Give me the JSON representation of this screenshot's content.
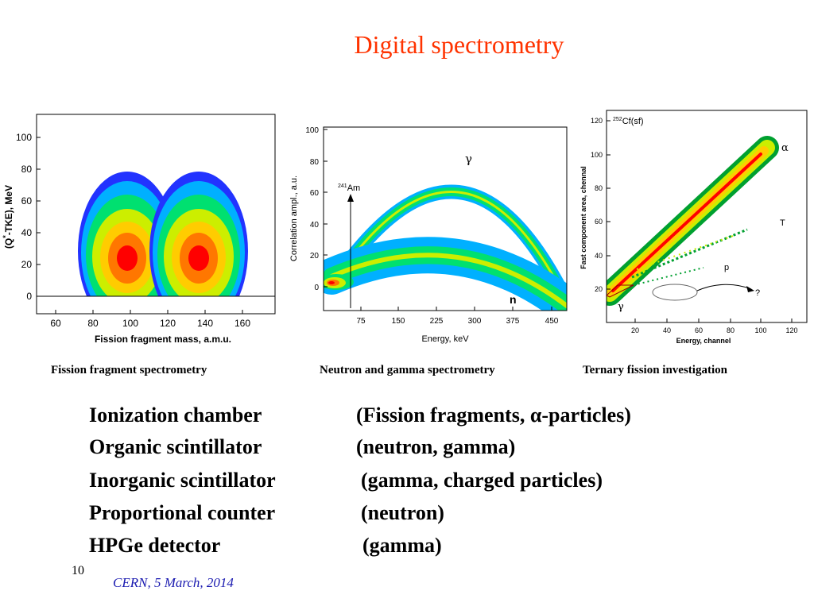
{
  "title": "Digital spectrometry",
  "panels": {
    "fragment": {
      "x_ticks": [
        "60",
        "80",
        "100",
        "120",
        "140",
        "160"
      ],
      "y_ticks": [
        "0",
        "20",
        "40",
        "60",
        "80",
        "100"
      ],
      "xlabel": "Fission fragment mass, a.m.u.",
      "ylabel_main": "(Q",
      "ylabel_sup": "*",
      "ylabel_rest": "-TKE), MeV"
    },
    "neutron_gamma": {
      "x_ticks": [
        "75",
        "150",
        "225",
        "300",
        "375",
        "450"
      ],
      "y_ticks": [
        "0",
        "20",
        "40",
        "60",
        "80",
        "100"
      ],
      "xlabel": "Energy, keV",
      "ylabel": "Correlation ampl., a.u.",
      "source_mass": "241",
      "source_symbol": "Am",
      "gamma_label": "γ",
      "neutron_label": "n"
    },
    "ternary": {
      "x_ticks": [
        "20",
        "40",
        "60",
        "80",
        "100",
        "120"
      ],
      "y_ticks": [
        "20",
        "40",
        "60",
        "80",
        "100",
        "120"
      ],
      "xlabel": "Energy, channel",
      "ylabel": "Fast component area, chennal",
      "source_mass": "252",
      "source_label": "Cf(sf)",
      "alpha_label": "α",
      "triton_label": "T",
      "proton_label": "p",
      "gamma_label": "γ",
      "unknown_label": "?"
    }
  },
  "captions": [
    "Fission fragment spectrometry",
    "Neutron and gamma spectrometry",
    "Ternary fission investigation"
  ],
  "detectors": [
    {
      "name": "Ionization chamber",
      "particles": "(Fission fragments, α-particles)"
    },
    {
      "name": "Organic scintillator",
      "particles": "(neutron, gamma)"
    },
    {
      "name": "Inorganic scintillator",
      "particles": "(gamma, charged particles)"
    },
    {
      "name": "Proportional counter",
      "particles": "(neutron)"
    },
    {
      "name": "HPGe detector",
      "particles": "(gamma)"
    }
  ],
  "page_number": "10",
  "footer": "CERN, 5 March, 2014",
  "colors": {
    "title": "#ff3300",
    "footer": "#1a1ab0",
    "heat_scale": [
      "#2233ff",
      "#00b0ff",
      "#00e070",
      "#ccee00",
      "#ffcc00",
      "#ff7700",
      "#ff0000"
    ]
  }
}
